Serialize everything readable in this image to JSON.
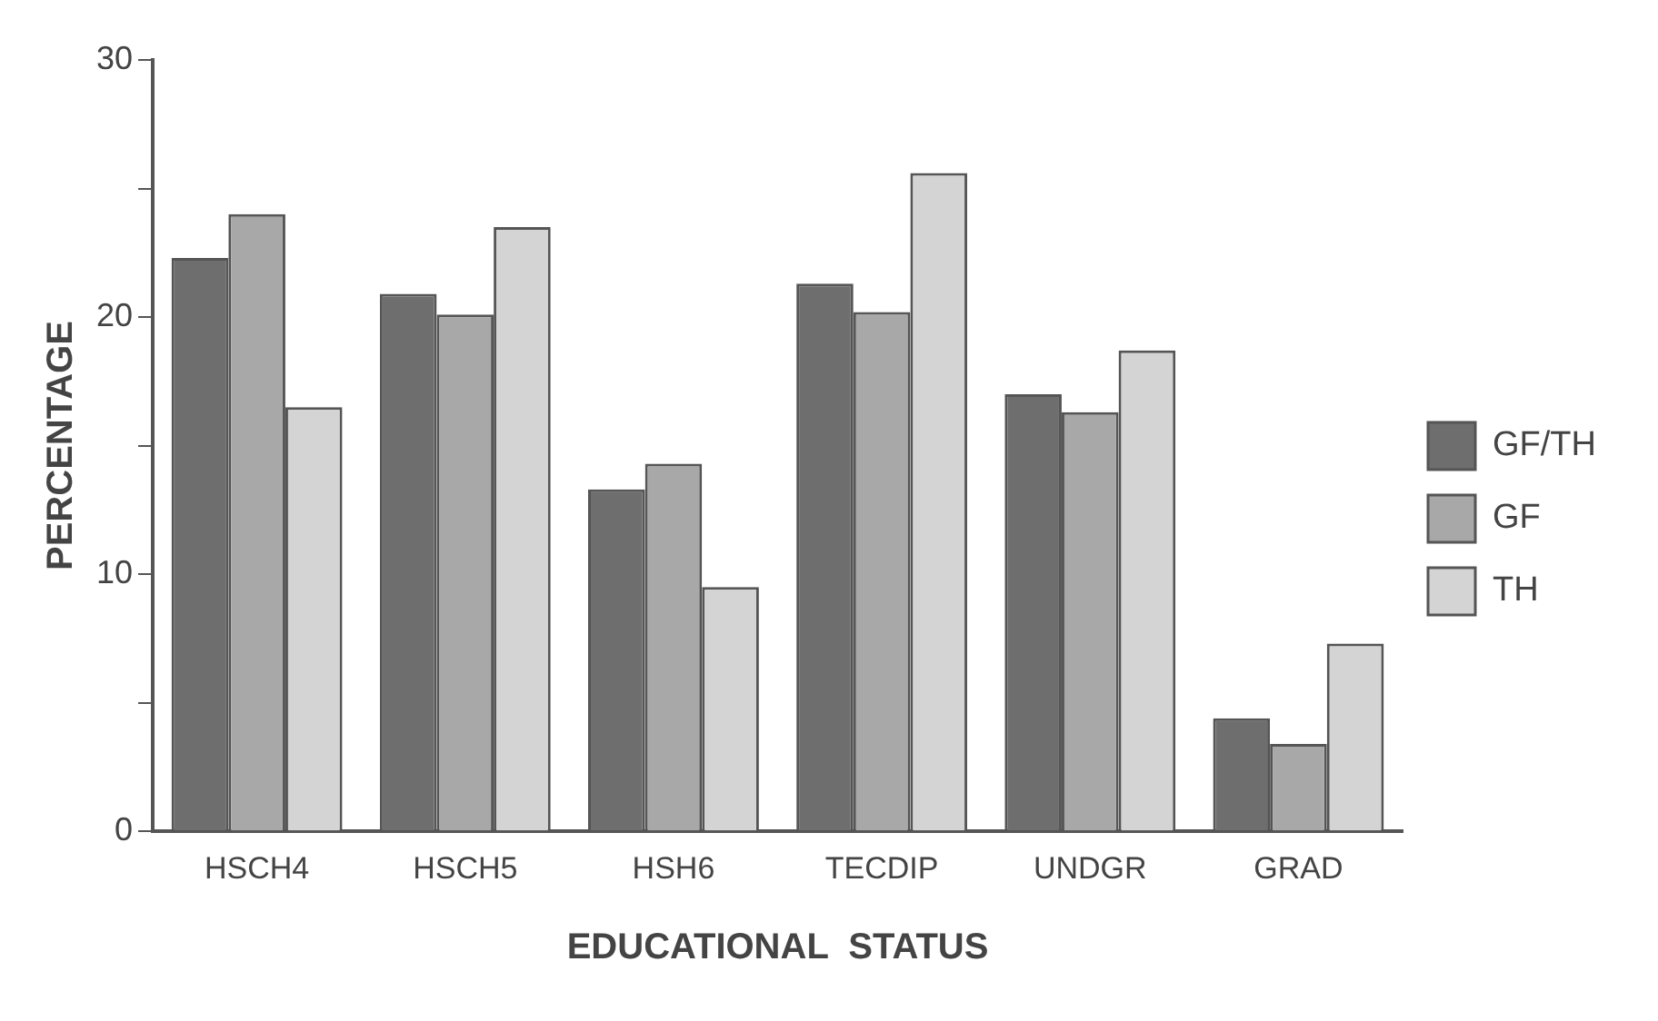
{
  "chart_data": {
    "type": "bar",
    "xlabel": "EDUCATIONAL  STATUS",
    "ylabel": "PERCENTAGE",
    "categories": [
      "HSCH4",
      "HSCH5",
      "HSH6",
      "TECDIP",
      "UNDGR",
      "GRAD"
    ],
    "series": [
      {
        "name": "GF/TH",
        "color": "#6e6e6e",
        "values": [
          22.3,
          20.9,
          13.3,
          21.3,
          17.0,
          4.4
        ]
      },
      {
        "name": "GF",
        "color": "#a8a8a8",
        "values": [
          24.0,
          20.1,
          14.3,
          20.2,
          16.3,
          3.4
        ]
      },
      {
        "name": "TH",
        "color": "#d4d4d4",
        "values": [
          16.5,
          23.5,
          9.5,
          25.6,
          18.7,
          7.3
        ]
      }
    ],
    "ylim": [
      0,
      30
    ],
    "yticks": [
      0,
      {
        "value": 5,
        "label": null
      },
      10,
      {
        "value": 15,
        "label": null
      },
      20,
      {
        "value": 25,
        "label": null
      },
      30
    ],
    "legend": "right",
    "grid": false
  }
}
